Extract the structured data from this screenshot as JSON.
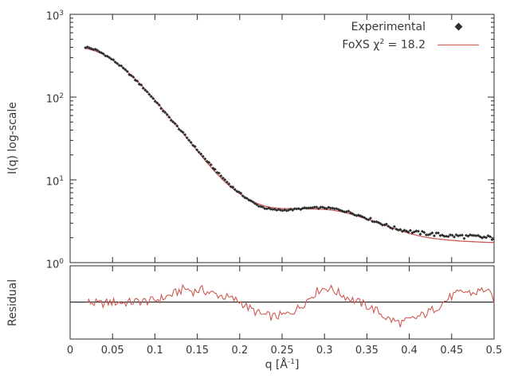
{
  "figure": {
    "background": "#ffffff",
    "text_color": "#383838",
    "axis_color": "#2a2a2a"
  },
  "labels": {
    "y_main": "I(q) log-scale",
    "y_residual": "Residual",
    "x_pre": "q [Å",
    "x_sup": "-1",
    "x_post": "]"
  },
  "legend": {
    "experimental": "Experimental",
    "foxs_pre": "FoXS χ",
    "foxs_sup": "2",
    "foxs_post": " = 18.2"
  },
  "chart_data": {
    "type": "line",
    "title": "",
    "legend_position": "top-right-inside",
    "x": {
      "label": "q [Å^-1]",
      "min": 0,
      "max": 0.5,
      "ticks": [
        {
          "v": 0,
          "label": "0"
        },
        {
          "v": 0.05,
          "label": "0.05"
        },
        {
          "v": 0.1,
          "label": "0.1"
        },
        {
          "v": 0.15,
          "label": "0.15"
        },
        {
          "v": 0.2,
          "label": "0.2"
        },
        {
          "v": 0.25,
          "label": "0.25"
        },
        {
          "v": 0.3,
          "label": "0.3"
        },
        {
          "v": 0.35,
          "label": "0.35"
        },
        {
          "v": 0.4,
          "label": "0.4"
        },
        {
          "v": 0.45,
          "label": "0.45"
        },
        {
          "v": 0.5,
          "label": "0.5"
        }
      ]
    },
    "main_panel": {
      "ylabel": "I(q) log-scale",
      "yscale": "log",
      "ylim": [
        1,
        1000
      ],
      "yticks": [
        1,
        10,
        100,
        1000
      ],
      "series": [
        {
          "name": "Experimental",
          "type": "scatter",
          "marker": "diamond",
          "color": "#2e2e2e",
          "points": [
            [
              0.02,
              400
            ],
            [
              0.03,
              372
            ],
            [
              0.04,
              330
            ],
            [
              0.05,
              283
            ],
            [
              0.06,
              235
            ],
            [
              0.07,
              190
            ],
            [
              0.08,
              151
            ],
            [
              0.09,
              118
            ],
            [
              0.1,
              91
            ],
            [
              0.11,
              68
            ],
            [
              0.12,
              52
            ],
            [
              0.13,
              40
            ],
            [
              0.14,
              30.5
            ],
            [
              0.15,
              23.0
            ],
            [
              0.16,
              17.5
            ],
            [
              0.17,
              13.5
            ],
            [
              0.18,
              10.6
            ],
            [
              0.19,
              8.4
            ],
            [
              0.2,
              6.9
            ],
            [
              0.21,
              5.8
            ],
            [
              0.22,
              5.0
            ],
            [
              0.23,
              4.55
            ],
            [
              0.24,
              4.35
            ],
            [
              0.25,
              4.3
            ],
            [
              0.26,
              4.35
            ],
            [
              0.27,
              4.45
            ],
            [
              0.28,
              4.55
            ],
            [
              0.29,
              4.6
            ],
            [
              0.3,
              4.6
            ],
            [
              0.31,
              4.5
            ],
            [
              0.32,
              4.3
            ],
            [
              0.33,
              4.05
            ],
            [
              0.34,
              3.75
            ],
            [
              0.35,
              3.45
            ],
            [
              0.36,
              3.15
            ],
            [
              0.37,
              2.9
            ],
            [
              0.38,
              2.65
            ],
            [
              0.39,
              2.5
            ],
            [
              0.4,
              2.4
            ],
            [
              0.41,
              2.3
            ],
            [
              0.42,
              2.25
            ],
            [
              0.43,
              2.2
            ],
            [
              0.44,
              2.15
            ],
            [
              0.45,
              2.1
            ],
            [
              0.46,
              2.1
            ],
            [
              0.47,
              2.05
            ],
            [
              0.48,
              2.05
            ],
            [
              0.49,
              2.0
            ],
            [
              0.5,
              2.0
            ]
          ]
        },
        {
          "name": "FoXS χ2 = 18.2",
          "type": "line",
          "chi2": 18.2,
          "color": "#cd5a52",
          "points": [
            [
              0.02,
              385
            ],
            [
              0.03,
              360
            ],
            [
              0.04,
              325
            ],
            [
              0.05,
              282
            ],
            [
              0.06,
              237
            ],
            [
              0.07,
              193
            ],
            [
              0.08,
              154
            ],
            [
              0.09,
              120
            ],
            [
              0.1,
              92
            ],
            [
              0.11,
              70
            ],
            [
              0.12,
              53
            ],
            [
              0.13,
              40
            ],
            [
              0.14,
              30
            ],
            [
              0.15,
              22.5
            ],
            [
              0.16,
              16.8
            ],
            [
              0.17,
              12.8
            ],
            [
              0.18,
              10.0
            ],
            [
              0.19,
              8.1
            ],
            [
              0.2,
              6.8
            ],
            [
              0.21,
              5.9
            ],
            [
              0.22,
              5.2
            ],
            [
              0.23,
              4.8
            ],
            [
              0.24,
              4.6
            ],
            [
              0.25,
              4.5
            ],
            [
              0.26,
              4.48
            ],
            [
              0.27,
              4.47
            ],
            [
              0.28,
              4.46
            ],
            [
              0.29,
              4.44
            ],
            [
              0.3,
              4.4
            ],
            [
              0.31,
              4.3
            ],
            [
              0.32,
              4.12
            ],
            [
              0.33,
              3.88
            ],
            [
              0.34,
              3.62
            ],
            [
              0.35,
              3.36
            ],
            [
              0.36,
              3.1
            ],
            [
              0.37,
              2.85
            ],
            [
              0.38,
              2.62
            ],
            [
              0.39,
              2.42
            ],
            [
              0.4,
              2.26
            ],
            [
              0.41,
              2.12
            ],
            [
              0.42,
              2.02
            ],
            [
              0.43,
              1.95
            ],
            [
              0.44,
              1.9
            ],
            [
              0.45,
              1.86
            ],
            [
              0.46,
              1.82
            ],
            [
              0.47,
              1.8
            ],
            [
              0.48,
              1.78
            ],
            [
              0.49,
              1.76
            ],
            [
              0.5,
              1.75
            ]
          ]
        }
      ]
    },
    "residual_panel": {
      "ylabel": "Residual",
      "yscale": "log",
      "ylim": [
        0.35,
        2.8
      ],
      "baseline": 1,
      "baseline_color": "#000000",
      "series": [
        {
          "name": "Residual",
          "type": "line",
          "color": "#cd5a52",
          "points": [
            [
              0.02,
              1.0
            ],
            [
              0.035,
              0.95
            ],
            [
              0.05,
              1.0
            ],
            [
              0.065,
              0.98
            ],
            [
              0.08,
              1.02
            ],
            [
              0.095,
              1.03
            ],
            [
              0.11,
              1.12
            ],
            [
              0.125,
              1.3
            ],
            [
              0.135,
              1.48
            ],
            [
              0.145,
              1.35
            ],
            [
              0.155,
              1.42
            ],
            [
              0.165,
              1.3
            ],
            [
              0.175,
              1.22
            ],
            [
              0.19,
              1.1
            ],
            [
              0.2,
              1.02
            ],
            [
              0.21,
              0.85
            ],
            [
              0.225,
              0.7
            ],
            [
              0.24,
              0.66
            ],
            [
              0.255,
              0.7
            ],
            [
              0.27,
              0.85
            ],
            [
              0.285,
              1.2
            ],
            [
              0.295,
              1.45
            ],
            [
              0.305,
              1.5
            ],
            [
              0.315,
              1.32
            ],
            [
              0.33,
              1.1
            ],
            [
              0.345,
              0.95
            ],
            [
              0.36,
              0.8
            ],
            [
              0.375,
              0.62
            ],
            [
              0.39,
              0.55
            ],
            [
              0.405,
              0.62
            ],
            [
              0.42,
              0.72
            ],
            [
              0.435,
              0.9
            ],
            [
              0.45,
              1.18
            ],
            [
              0.465,
              1.35
            ],
            [
              0.475,
              1.28
            ],
            [
              0.49,
              1.45
            ],
            [
              0.5,
              1.05
            ]
          ]
        }
      ]
    }
  }
}
